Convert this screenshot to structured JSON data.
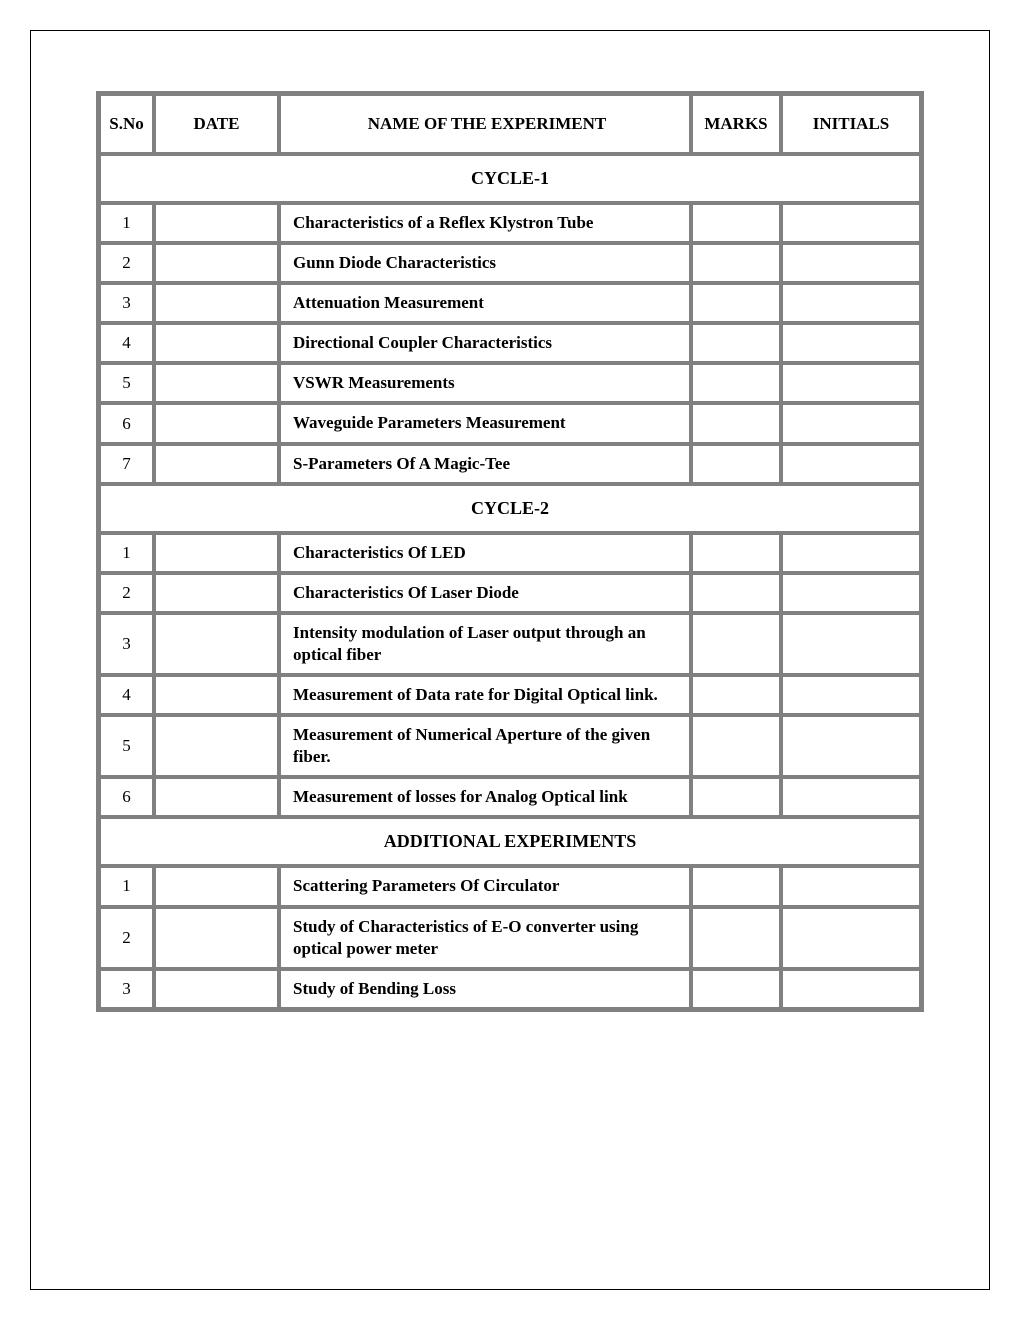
{
  "table": {
    "columns": {
      "sno": "S.No",
      "date": "DATE",
      "name": "NAME OF THE EXPERIMENT",
      "marks": "MARKS",
      "initials": "INITIALS"
    },
    "sections": [
      {
        "title": "CYCLE-1",
        "rows": [
          {
            "sno": "1",
            "name": "Characteristics of a Reflex Klystron Tube"
          },
          {
            "sno": "2",
            "name": "Gunn Diode Characteristics"
          },
          {
            "sno": "3",
            "name": "Attenuation Measurement"
          },
          {
            "sno": "4",
            "name": "Directional Coupler Characteristics"
          },
          {
            "sno": "5",
            "name": "VSWR Measurements"
          },
          {
            "sno": "6",
            "name": "Waveguide Parameters Measurement"
          },
          {
            "sno": "7",
            "name": "S-Parameters Of A Magic-Tee"
          }
        ]
      },
      {
        "title": "CYCLE-2",
        "rows": [
          {
            "sno": "1",
            "name": "Characteristics  Of LED"
          },
          {
            "sno": "2",
            "name": "Characteristics Of Laser Diode"
          },
          {
            "sno": "3",
            "name": "Intensity modulation of Laser output through an optical fiber"
          },
          {
            "sno": "4",
            "name": "Measurement of Data rate for Digital Optical link."
          },
          {
            "sno": "5",
            "name": "Measurement of Numerical Aperture of the given fiber."
          },
          {
            "sno": "6",
            "name": "Measurement of losses for Analog Optical link"
          }
        ]
      },
      {
        "title": "ADDITIONAL  EXPERIMENTS",
        "rows": [
          {
            "sno": "1",
            "name": "Scattering Parameters Of Circulator"
          },
          {
            "sno": "2",
            "name": "Study of Characteristics of E-O converter using optical power meter"
          },
          {
            "sno": "3",
            "name": "Study of Bending Loss"
          }
        ]
      }
    ]
  },
  "styling": {
    "page_bg": "#ffffff",
    "text_color": "#000000",
    "border_color": "#808080",
    "font_family": "Times New Roman",
    "header_fontsize": 17,
    "body_fontsize": 17,
    "section_fontsize": 18
  }
}
